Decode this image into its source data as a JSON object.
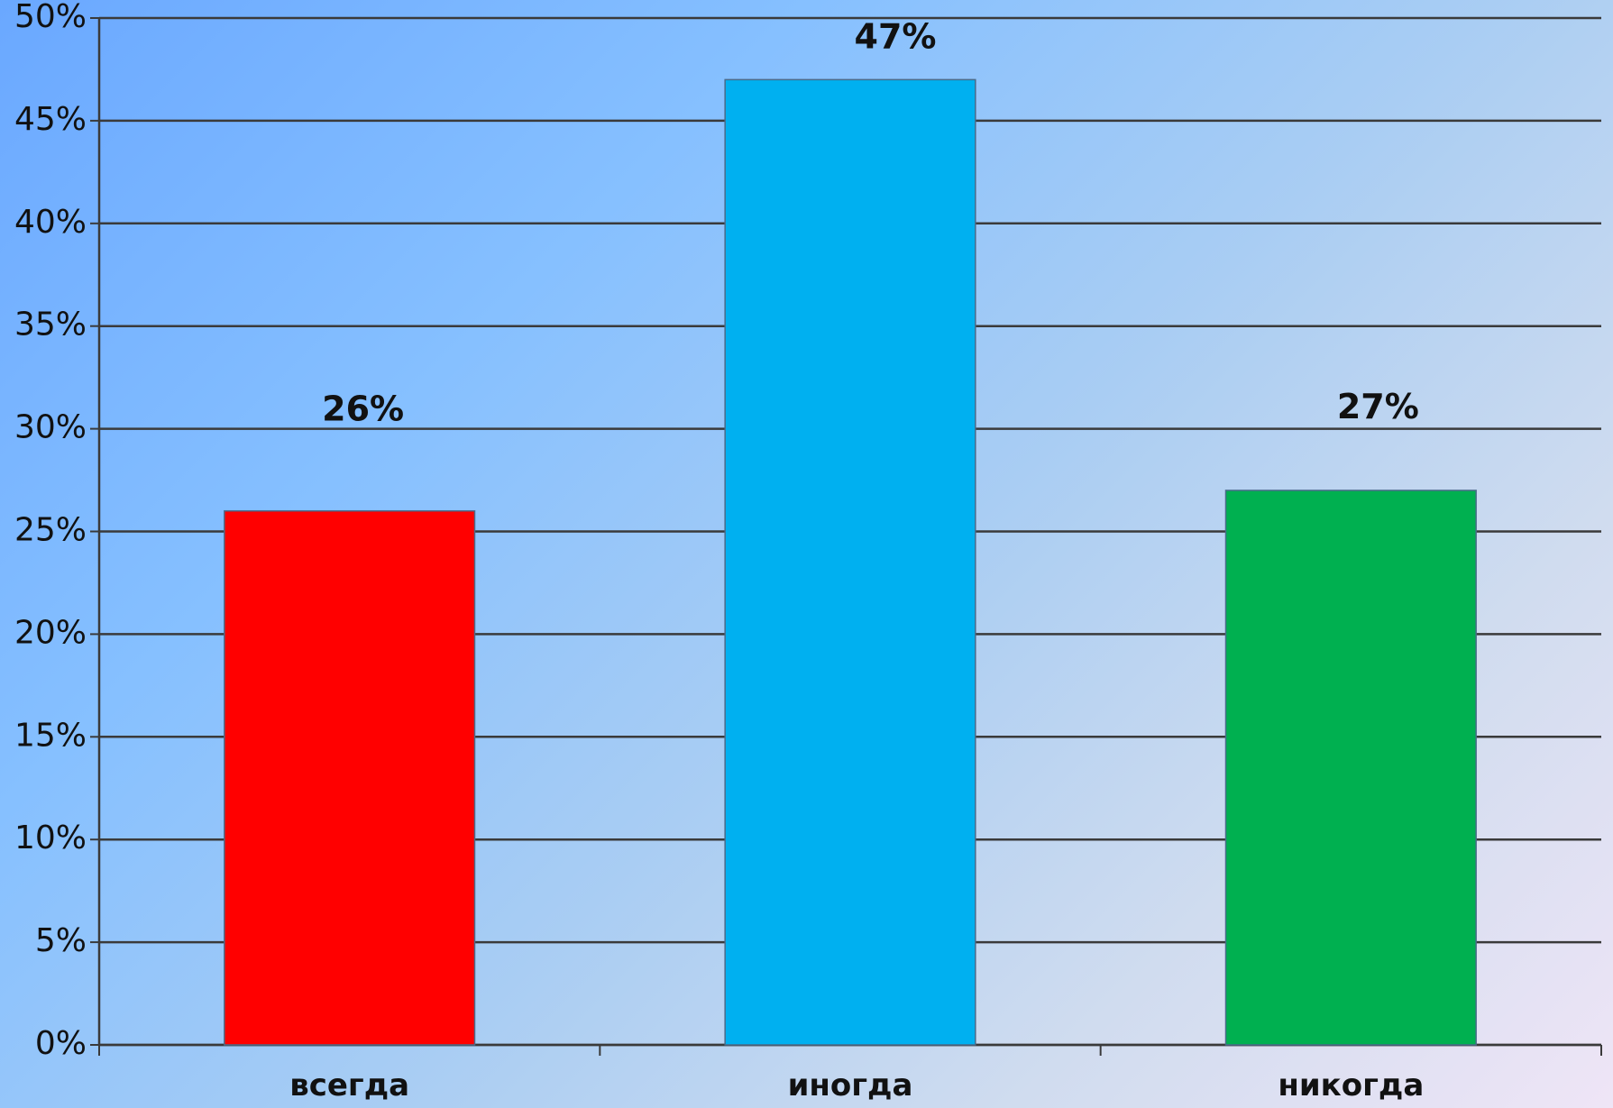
{
  "chart_data": {
    "type": "bar",
    "categories": [
      "всегда",
      "иногда",
      "никогда"
    ],
    "values": [
      26,
      47,
      27
    ],
    "data_labels": [
      "26%",
      "47%",
      "27%"
    ],
    "bar_colors": [
      "#ff0000",
      "#00b0f0",
      "#00b050"
    ],
    "title": "",
    "xlabel": "",
    "ylabel": "",
    "ylim": [
      0,
      50
    ],
    "yticks": [
      0,
      5,
      10,
      15,
      20,
      25,
      30,
      35,
      40,
      45,
      50
    ],
    "ytick_labels": [
      "0%",
      "5%",
      "10%",
      "15%",
      "20%",
      "25%",
      "30%",
      "35%",
      "40%",
      "45%",
      "50%"
    ],
    "grid": true,
    "legend": "none"
  }
}
